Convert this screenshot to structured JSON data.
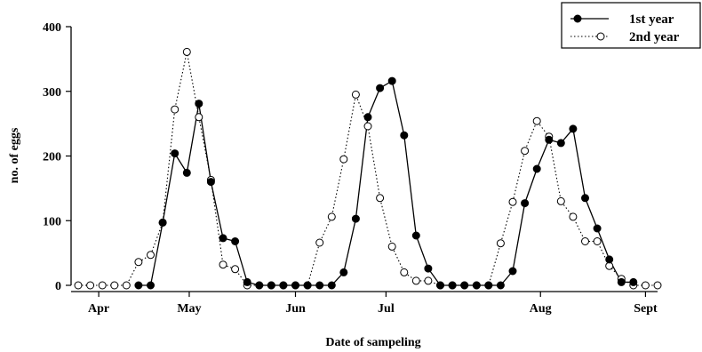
{
  "chart_data": {
    "type": "line",
    "title": "",
    "xlabel": "Date of sampeling",
    "ylabel": "no. of eggs",
    "ylim": [
      0,
      400
    ],
    "yticks": [
      0,
      100,
      200,
      300,
      400
    ],
    "xlim": [
      0,
      48
    ],
    "xticks": [
      {
        "x": 1.7,
        "label": "Apr"
      },
      {
        "x": 9.2,
        "label": "May"
      },
      {
        "x": 18.0,
        "label": "Jun"
      },
      {
        "x": 25.5,
        "label": "Jul"
      },
      {
        "x": 38.3,
        "label": "Aug"
      },
      {
        "x": 47.0,
        "label": "Sept"
      }
    ],
    "grid": false,
    "legend_position": "top-right",
    "series": [
      {
        "name": "1st year",
        "style": "solid",
        "marker": "filled",
        "x": [
          5,
          6,
          7,
          8,
          9,
          10,
          11,
          12,
          13,
          14,
          15,
          16,
          17,
          18,
          19,
          20,
          21,
          22,
          23,
          24,
          25,
          26,
          27,
          28,
          29,
          30,
          31,
          32,
          33,
          34,
          35,
          36,
          37,
          38,
          39,
          40,
          41,
          42,
          43,
          44,
          45,
          46
        ],
        "y": [
          0,
          0,
          97,
          204,
          174,
          281,
          160,
          73,
          68,
          5,
          0,
          0,
          0,
          0,
          0,
          0,
          0,
          20,
          103,
          260,
          305,
          316,
          232,
          77,
          26,
          0,
          0,
          0,
          0,
          0,
          0,
          22,
          127,
          180,
          225,
          220,
          242,
          135,
          88,
          40,
          5,
          5
        ]
      },
      {
        "name": "2nd year",
        "style": "dotted",
        "marker": "open",
        "x": [
          0,
          1,
          2,
          3,
          4,
          5,
          6,
          7,
          8,
          9,
          10,
          11,
          12,
          13,
          14,
          15,
          16,
          17,
          18,
          19,
          20,
          21,
          22,
          23,
          24,
          25,
          26,
          27,
          28,
          29,
          30,
          31,
          32,
          33,
          34,
          35,
          36,
          37,
          38,
          39,
          40,
          41,
          42,
          43,
          44,
          45,
          46,
          47,
          48
        ],
        "y": [
          0,
          0,
          0,
          0,
          0,
          36,
          47,
          97,
          272,
          361,
          260,
          163,
          32,
          25,
          0,
          0,
          0,
          0,
          0,
          0,
          66,
          106,
          195,
          295,
          246,
          135,
          60,
          20,
          7,
          7,
          0,
          0,
          0,
          0,
          0,
          65,
          129,
          208,
          254,
          230,
          130,
          106,
          68,
          68,
          30,
          10,
          0,
          0,
          0
        ]
      }
    ]
  }
}
